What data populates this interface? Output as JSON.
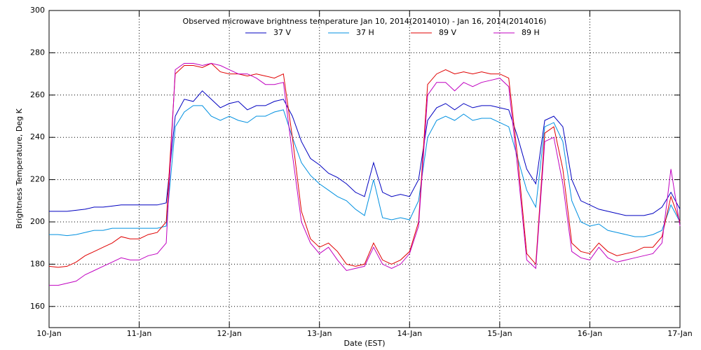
{
  "chart_data": {
    "type": "line",
    "title": "Observed microwave brightness temperature Jan 10, 2014(2014010) - Jan 16, 2014(2014016)",
    "x_label": "Date (EST)",
    "y_label": "Brightness Temperature, Deg K",
    "x": [
      10,
      10.1,
      10.2,
      10.3,
      10.4,
      10.5,
      10.6,
      10.7,
      10.8,
      10.9,
      11,
      11.1,
      11.2,
      11.3,
      11.4,
      11.5,
      11.6,
      11.7,
      11.8,
      11.9,
      12,
      12.1,
      12.2,
      12.3,
      12.4,
      12.5,
      12.6,
      12.7,
      12.8,
      12.9,
      13,
      13.1,
      13.2,
      13.3,
      13.4,
      13.5,
      13.6,
      13.7,
      13.8,
      13.9,
      14,
      14.1,
      14.2,
      14.3,
      14.4,
      14.5,
      14.6,
      14.7,
      14.8,
      14.9,
      15,
      15.1,
      15.2,
      15.3,
      15.4,
      15.5,
      15.6,
      15.7,
      15.8,
      15.9,
      16,
      16.1,
      16.2,
      16.3,
      16.4,
      16.5,
      16.6,
      16.7,
      16.8,
      16.9,
      17
    ],
    "series": [
      {
        "name": "37 V",
        "color": "#0000c0",
        "values": [
          205,
          205,
          205,
          205.5,
          206,
          207,
          207,
          207.5,
          208,
          208,
          208,
          208,
          208,
          209,
          250,
          258,
          257,
          262,
          258,
          254,
          256,
          257,
          253,
          255,
          255,
          257,
          258,
          250,
          238,
          230,
          227,
          223,
          221,
          218,
          214,
          212,
          228,
          214,
          212,
          213,
          212,
          220,
          248,
          254,
          256,
          253,
          256,
          254,
          255,
          255,
          254,
          253,
          240,
          225,
          218,
          248,
          250,
          245,
          220,
          210,
          208,
          206,
          205,
          204,
          203,
          203,
          203,
          204,
          207,
          214,
          206
        ]
      },
      {
        "name": "37 H",
        "color": "#0090e0",
        "values": [
          194,
          194,
          193.5,
          194,
          195,
          196,
          196,
          197,
          197,
          197,
          197,
          197,
          197,
          198,
          245,
          252,
          255,
          255,
          250,
          248,
          250,
          248,
          247,
          250,
          250,
          252,
          253,
          240,
          228,
          222,
          218,
          215,
          212,
          210,
          206,
          203,
          220,
          202,
          201,
          202,
          201,
          210,
          240,
          248,
          250,
          248,
          251,
          248,
          249,
          249,
          247,
          245,
          230,
          215,
          207,
          245,
          247,
          238,
          210,
          200,
          198,
          199,
          196,
          195,
          194,
          193,
          193,
          194,
          196,
          208,
          200
        ]
      },
      {
        "name": "89 V",
        "color": "#e00000",
        "values": [
          179,
          178.5,
          179,
          181,
          184,
          186,
          188,
          190,
          193,
          192,
          192,
          194,
          195,
          200,
          270,
          274,
          274,
          273,
          275,
          271,
          270,
          270,
          269,
          270,
          269,
          268,
          270,
          240,
          205,
          192,
          188,
          190,
          186,
          180,
          179,
          180,
          190,
          182,
          180,
          182,
          186,
          200,
          265,
          270,
          272,
          270,
          271,
          270,
          271,
          270,
          270,
          268,
          230,
          185,
          180,
          242,
          245,
          225,
          190,
          186,
          185,
          190,
          186,
          184,
          185,
          186,
          188,
          188,
          193,
          212,
          200
        ]
      },
      {
        "name": "89 H",
        "color": "#c000c0",
        "values": [
          170,
          170,
          171,
          172,
          175,
          177,
          179,
          181,
          183,
          182,
          182,
          184,
          185,
          190,
          272,
          275,
          275,
          274,
          275,
          274,
          272,
          270,
          270,
          268,
          265,
          265,
          266,
          232,
          200,
          190,
          185,
          188,
          182,
          177,
          178,
          179,
          188,
          180,
          178,
          180,
          185,
          198,
          260,
          266,
          266,
          262,
          266,
          264,
          266,
          267,
          268,
          264,
          225,
          182,
          178,
          238,
          240,
          218,
          186,
          183,
          182,
          188,
          183,
          181,
          182,
          183,
          184,
          185,
          190,
          225,
          198
        ]
      }
    ],
    "xlim": [
      10,
      17
    ],
    "xticks": [
      {
        "value": 10,
        "label": "10-Jan"
      },
      {
        "value": 11,
        "label": "11-Jan"
      },
      {
        "value": 12,
        "label": "12-Jan"
      },
      {
        "value": 13,
        "label": "13-Jan"
      },
      {
        "value": 14,
        "label": "14-Jan"
      },
      {
        "value": 15,
        "label": "15-Jan"
      },
      {
        "value": 16,
        "label": "16-Jan"
      },
      {
        "value": 17,
        "label": "17-Jan"
      }
    ],
    "ylim": [
      150,
      300
    ],
    "yticks": [
      160,
      180,
      200,
      220,
      240,
      260,
      280,
      300
    ],
    "grid": true
  }
}
